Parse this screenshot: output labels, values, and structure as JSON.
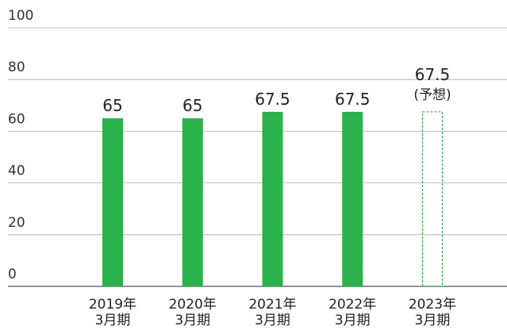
{
  "chart_data": {
    "type": "bar",
    "categories": [
      [
        "2019年",
        "3月期"
      ],
      [
        "2020年",
        "3月期"
      ],
      [
        "2021年",
        "3月期"
      ],
      [
        "2022年",
        "3月期"
      ],
      [
        "2023年",
        "3月期"
      ]
    ],
    "values": [
      65,
      65,
      67.5,
      67.5,
      67.5
    ],
    "styles": [
      "solid",
      "solid",
      "solid",
      "solid",
      "dashed"
    ],
    "annotation": "(予想)",
    "color": "#2bb24c",
    "ylim": [
      0,
      100
    ],
    "yticks": [
      0,
      20,
      40,
      60,
      80,
      100
    ],
    "grid": true
  }
}
